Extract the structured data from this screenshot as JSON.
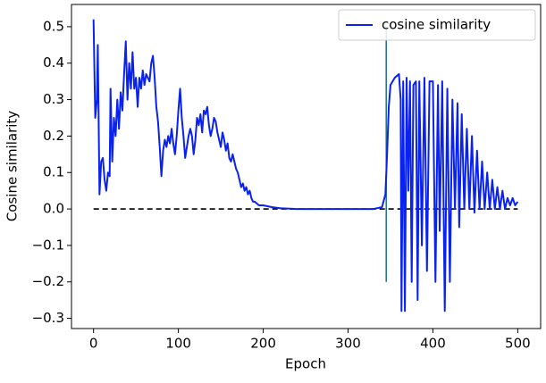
{
  "chart_data": {
    "type": "line",
    "xlabel": "Epoch",
    "ylabel": "Cosine similarity",
    "x": [
      0,
      2,
      4,
      5,
      7,
      9,
      11,
      13,
      15,
      17,
      19,
      20,
      22,
      24,
      26,
      28,
      30,
      32,
      34,
      36,
      38,
      40,
      42,
      44,
      46,
      48,
      50,
      52,
      54,
      56,
      58,
      60,
      62,
      64,
      66,
      68,
      70,
      72,
      74,
      76,
      78,
      80,
      82,
      84,
      86,
      88,
      90,
      92,
      94,
      96,
      98,
      100,
      102,
      104,
      106,
      108,
      110,
      112,
      114,
      116,
      118,
      120,
      122,
      124,
      126,
      128,
      130,
      132,
      134,
      136,
      138,
      140,
      142,
      144,
      146,
      148,
      150,
      152,
      154,
      156,
      158,
      160,
      162,
      164,
      166,
      168,
      170,
      172,
      174,
      176,
      178,
      180,
      182,
      184,
      186,
      188,
      190,
      195,
      200,
      210,
      220,
      240,
      300,
      330,
      340,
      344,
      346,
      348,
      350,
      355,
      360,
      362,
      363,
      365,
      367,
      369,
      371,
      373,
      375,
      377,
      380,
      382,
      384,
      387,
      390,
      393,
      396,
      400,
      403,
      406,
      408,
      411,
      414,
      417,
      420,
      423,
      426,
      429,
      431,
      434,
      437,
      440,
      443,
      446,
      449,
      452,
      455,
      458,
      461,
      464,
      467,
      470,
      473,
      476,
      479,
      482,
      485,
      488,
      491,
      494,
      497,
      500
    ],
    "series": [
      {
        "name": "cosine similarity",
        "color": "#0a22f0",
        "values": [
          0.52,
          0.25,
          0.3,
          0.45,
          0.04,
          0.13,
          0.14,
          0.08,
          0.05,
          0.1,
          0.09,
          0.33,
          0.13,
          0.25,
          0.2,
          0.3,
          0.22,
          0.32,
          0.27,
          0.37,
          0.46,
          0.3,
          0.4,
          0.33,
          0.43,
          0.33,
          0.36,
          0.28,
          0.36,
          0.33,
          0.38,
          0.34,
          0.37,
          0.36,
          0.35,
          0.4,
          0.42,
          0.36,
          0.28,
          0.24,
          0.17,
          0.09,
          0.16,
          0.19,
          0.17,
          0.2,
          0.18,
          0.22,
          0.18,
          0.15,
          0.2,
          0.27,
          0.33,
          0.25,
          0.2,
          0.14,
          0.17,
          0.2,
          0.22,
          0.2,
          0.15,
          0.19,
          0.25,
          0.23,
          0.26,
          0.21,
          0.27,
          0.26,
          0.28,
          0.23,
          0.2,
          0.22,
          0.25,
          0.24,
          0.21,
          0.19,
          0.17,
          0.21,
          0.19,
          0.16,
          0.18,
          0.14,
          0.13,
          0.15,
          0.13,
          0.11,
          0.1,
          0.08,
          0.06,
          0.07,
          0.05,
          0.06,
          0.04,
          0.05,
          0.03,
          0.02,
          0.02,
          0.01,
          0.01,
          0.005,
          0.002,
          0,
          0,
          0,
          0.005,
          0.04,
          0.15,
          0.28,
          0.34,
          0.36,
          0.37,
          0.3,
          -0.28,
          0.35,
          -0.28,
          0.36,
          0.05,
          0.35,
          -0.2,
          0.34,
          0.35,
          -0.25,
          0.35,
          -0.1,
          0.36,
          -0.17,
          0.35,
          0.35,
          -0.2,
          0.34,
          -0.06,
          0.35,
          -0.28,
          0.33,
          -0.2,
          0.3,
          0.0,
          0.29,
          -0.05,
          0.26,
          0.0,
          0.22,
          0.0,
          0.2,
          -0.01,
          0.16,
          0.0,
          0.13,
          0.0,
          0.1,
          0.0,
          0.08,
          0.0,
          0.06,
          0.0,
          0.05,
          0.0,
          0.03,
          0.01,
          0.03,
          0.01,
          0.02
        ]
      }
    ],
    "reference_line": {
      "y": 0,
      "x": [
        0,
        500
      ],
      "color": "#000000"
    },
    "vline": {
      "x": 345,
      "y": [
        -0.2,
        0.5
      ],
      "color": "#1f6f8b"
    },
    "xlim": [
      -26,
      527
    ],
    "ylim": [
      -0.328,
      0.561
    ],
    "xticks": [
      0,
      100,
      200,
      300,
      400,
      500
    ],
    "yticks": [
      {
        "value": -0.3,
        "label": "−0.3"
      },
      {
        "value": -0.2,
        "label": "−0.2"
      },
      {
        "value": -0.1,
        "label": "−0.1"
      },
      {
        "value": 0,
        "label": "0.0"
      },
      0.1,
      0.2,
      0.3,
      0.4,
      0.5
    ],
    "legend": "upper right"
  }
}
